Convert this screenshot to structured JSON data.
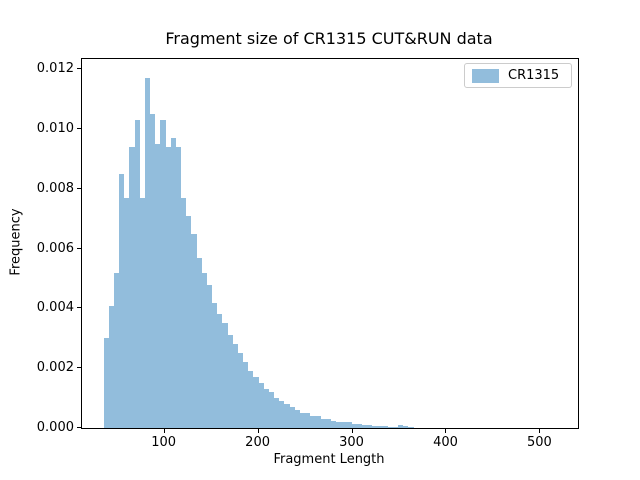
{
  "chart_data": {
    "type": "bar",
    "subtype": "histogram",
    "title": "Fragment size of CR1315 CUT&RUN data",
    "xlabel": "Fragment Length",
    "ylabel": "Frequency",
    "grid": false,
    "xlim": [
      12,
      540
    ],
    "ylim": [
      0,
      0.01235
    ],
    "xticks": {
      "values": [
        100,
        200,
        300,
        400,
        500
      ],
      "labels": [
        "100",
        "200",
        "300",
        "400",
        "500"
      ]
    },
    "yticks": {
      "values": [
        0,
        0.002,
        0.004,
        0.006,
        0.008,
        0.01,
        0.012
      ],
      "labels": [
        "0.000",
        "0.002",
        "0.004",
        "0.006",
        "0.008",
        "0.010",
        "0.012"
      ]
    },
    "legend": {
      "position": "upper right",
      "entries": [
        "CR1315"
      ]
    },
    "series": [
      {
        "name": "CR1315",
        "color": "#92bddc",
        "bin_start": 35,
        "bin_width": 5.5,
        "frequencies": [
          0.003,
          0.0041,
          0.0052,
          0.0085,
          0.0077,
          0.0094,
          0.0103,
          0.0077,
          0.0117,
          0.0105,
          0.0095,
          0.0103,
          0.0094,
          0.0097,
          0.0094,
          0.0077,
          0.0071,
          0.0065,
          0.0057,
          0.0052,
          0.0048,
          0.0042,
          0.0038,
          0.0035,
          0.0031,
          0.0028,
          0.0025,
          0.0022,
          0.0019,
          0.0017,
          0.0015,
          0.0013,
          0.0012,
          0.001,
          0.0009,
          0.0008,
          0.0007,
          0.0006,
          0.0005,
          0.0005,
          0.0004,
          0.0004,
          0.0003,
          0.0003,
          0.00025,
          0.0002,
          0.0002,
          0.0002,
          0.00015,
          0.00012,
          0.0001,
          0.0001,
          8e-05,
          7e-05,
          6e-05,
          5e-05,
          5e-05,
          9e-05,
          6e-05,
          3e-05
        ]
      }
    ],
    "colors": {
      "bar": "#92bddc",
      "spine": "#000000",
      "background": "#ffffff",
      "legend_border": "#cccccc"
    }
  }
}
